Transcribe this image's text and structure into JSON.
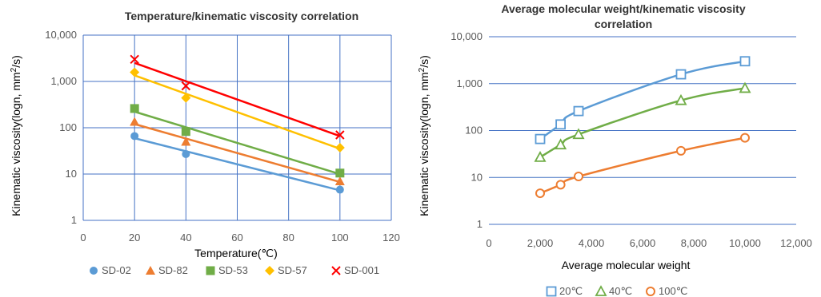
{
  "charts": [
    {
      "title": "Temperature/kinematic viscosity correlation",
      "xlabel": "Temperature(℃)",
      "ylabel_main": "Kinematic viscosity(logn, mm",
      "ylabel_sup": "2",
      "ylabel_end": "/s)"
    },
    {
      "title_line1": "Average molecular weight/kinematic viscosity",
      "title_line2": "correlation",
      "xlabel": "Average molecular weight",
      "ylabel_main": "Kinematic viscosity(logn, mm",
      "ylabel_sup": "2",
      "ylabel_end": "/s)"
    }
  ],
  "chart_data": [
    {
      "type": "scatter",
      "title": "Temperature/kinematic viscosity correlation",
      "xlabel": "Temperature(℃)",
      "ylabel": "Kinematic viscosity(logn, mm2/s)",
      "xlim": [
        0,
        120
      ],
      "ylim": [
        1,
        10000
      ],
      "yscale": "log",
      "xticks": [
        0,
        20,
        40,
        60,
        80,
        100,
        120
      ],
      "xtick_labels": [
        "0",
        "20",
        "40",
        "60",
        "80",
        "100",
        "120"
      ],
      "yticks": [
        1,
        10,
        100,
        1000,
        10000
      ],
      "ytick_labels": [
        "1",
        "10",
        "100",
        "1,000",
        "10,000"
      ],
      "grid": true,
      "legend_position": "bottom",
      "series": [
        {
          "name": "SD-02",
          "marker": "circle",
          "color": "#5B9BD5",
          "x": [
            20,
            40,
            100
          ],
          "y": [
            66,
            27,
            4.6
          ]
        },
        {
          "name": "SD-82",
          "marker": "triangle",
          "color": "#ED7D31",
          "x": [
            20,
            40,
            100
          ],
          "y": [
            135,
            50,
            7
          ]
        },
        {
          "name": "SD-53",
          "marker": "square",
          "color": "#70AD47",
          "x": [
            20,
            40,
            100
          ],
          "y": [
            260,
            83,
            10.5
          ]
        },
        {
          "name": "SD-57",
          "marker": "diamond",
          "color": "#FFC000",
          "x": [
            20,
            40,
            100
          ],
          "y": [
            1580,
            440,
            37
          ]
        },
        {
          "name": "SD-001",
          "marker": "x",
          "color": "#FF0000",
          "x": [
            20,
            40,
            100
          ],
          "y": [
            3000,
            800,
            70
          ]
        }
      ]
    },
    {
      "type": "scatter",
      "title": "Average molecular weight/kinematic viscosity correlation",
      "xlabel": "Average molecular weight",
      "ylabel": "Kinematic viscosity(logn, mm2/s)",
      "xlim": [
        0,
        12000
      ],
      "ylim": [
        1,
        10000
      ],
      "yscale": "log",
      "xticks": [
        0,
        2000,
        4000,
        6000,
        8000,
        10000,
        12000
      ],
      "xtick_labels": [
        "0",
        "2,000",
        "4,000",
        "6,000",
        "8,000",
        "10,000",
        "12,000"
      ],
      "yticks": [
        1,
        10,
        100,
        1000,
        10000
      ],
      "ytick_labels": [
        "1",
        "10",
        "100",
        "1,000",
        "10,000"
      ],
      "grid": true,
      "legend_position": "bottom",
      "series": [
        {
          "name": "20℃",
          "marker": "square-open",
          "color": "#5B9BD5",
          "x": [
            2000,
            2800,
            3500,
            7500,
            10000
          ],
          "y": [
            66,
            135,
            260,
            1580,
            3000
          ]
        },
        {
          "name": "40℃",
          "marker": "triangle-open",
          "color": "#70AD47",
          "x": [
            2000,
            2800,
            3500,
            7500,
            10000
          ],
          "y": [
            27,
            50,
            83,
            440,
            800
          ]
        },
        {
          "name": "100℃",
          "marker": "circle-open",
          "color": "#ED7D31",
          "x": [
            2000,
            2800,
            3500,
            7500,
            10000
          ],
          "y": [
            4.6,
            7,
            10.5,
            37,
            70
          ]
        }
      ]
    }
  ]
}
